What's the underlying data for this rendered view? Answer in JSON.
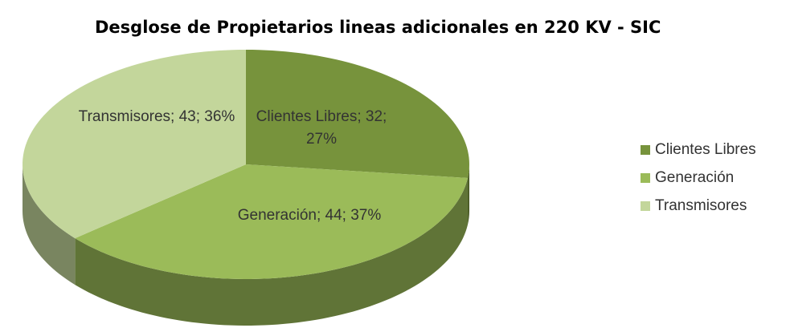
{
  "chart_data": {
    "type": "pie3d",
    "title": "Desglose de Propietarios lineas adicionales en 220 KV - SIC",
    "categories": [
      "Clientes Libres",
      "Generación",
      "Transmisores"
    ],
    "values": [
      32,
      44,
      43
    ],
    "value_labels": [
      "Clientes Libres; 32; 27%",
      "Generación; 44; 37%",
      "Transmisores; 43; 36%"
    ],
    "colors": [
      "#77933c",
      "#9bbb59",
      "#c3d69b"
    ],
    "legend": "right"
  }
}
